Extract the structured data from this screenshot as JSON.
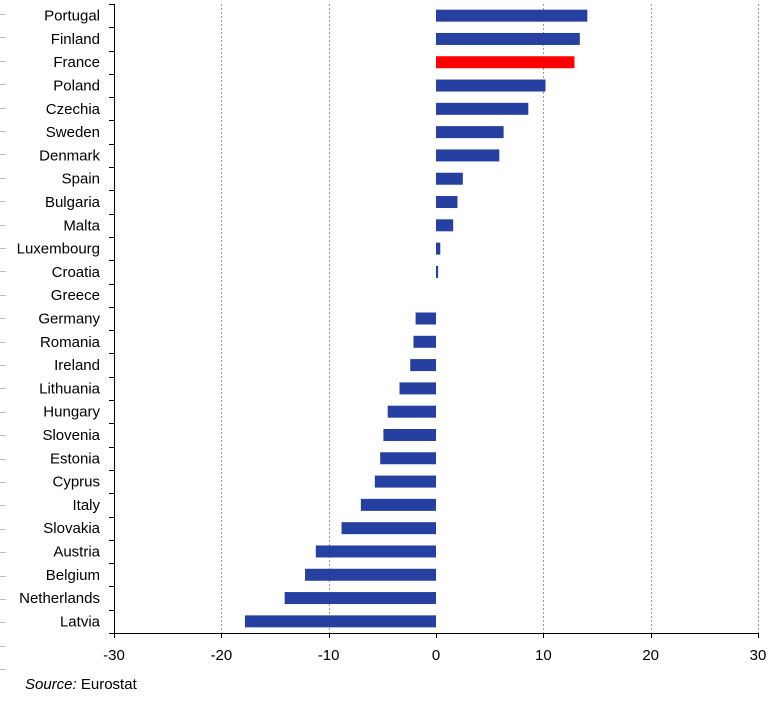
{
  "chart_data": {
    "type": "bar",
    "orientation": "horizontal",
    "categories": [
      "Portugal",
      "Finland",
      "France",
      "Poland",
      "Czechia",
      "Sweden",
      "Denmark",
      "Spain",
      "Bulgaria",
      "Malta",
      "Luxembourg",
      "Croatia",
      "Greece",
      "Germany",
      "Romania",
      "Ireland",
      "Lithuania",
      "Hungary",
      "Slovenia",
      "Estonia",
      "Cyprus",
      "Italy",
      "Slovakia",
      "Austria",
      "Belgium",
      "Netherlands",
      "Latvia"
    ],
    "values": [
      14.1,
      13.4,
      12.9,
      10.2,
      8.6,
      6.3,
      5.9,
      2.5,
      2.0,
      1.6,
      0.4,
      0.2,
      0.0,
      -1.9,
      -2.1,
      -2.4,
      -3.4,
      -4.5,
      -4.9,
      -5.2,
      -5.7,
      -7.0,
      -8.8,
      -11.2,
      -12.2,
      -14.1,
      -17.8
    ],
    "highlight": "France",
    "colors": {
      "bar": "#2540a0",
      "highlight": "#ff0000",
      "grid": "#9a9a9a"
    },
    "xlim": [
      -30,
      30
    ],
    "xticks": [
      -30,
      -20,
      -10,
      0,
      10,
      20,
      30
    ],
    "grid": "vertical dashed"
  },
  "source": {
    "label": "Source:",
    "text": "Eurostat"
  }
}
